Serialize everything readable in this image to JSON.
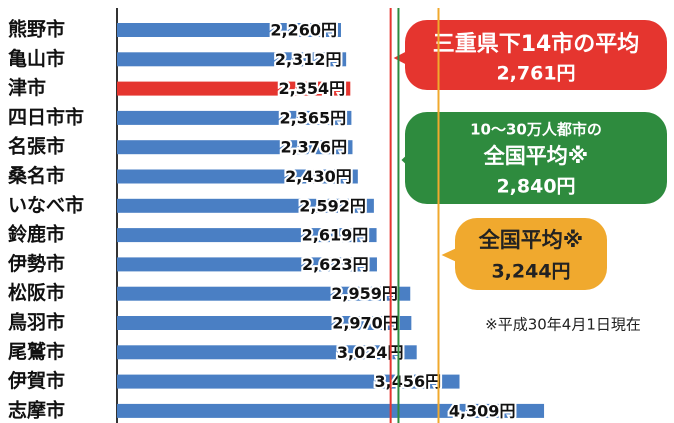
{
  "chart_data": {
    "type": "bar",
    "orientation": "horizontal",
    "categories": [
      "熊野市",
      "亀山市",
      "津市",
      "四日市市",
      "名張市",
      "桑名市",
      "いなべ市",
      "鈴鹿市",
      "伊勢市",
      "松阪市",
      "鳥羽市",
      "尾鷲市",
      "伊賀市",
      "志摩市"
    ],
    "values": [
      2260,
      2312,
      2354,
      2365,
      2376,
      2430,
      2592,
      2619,
      2623,
      2959,
      2970,
      3024,
      3456,
      4309
    ],
    "value_labels": [
      "2,260円",
      "2,312円",
      "2,354円",
      "2,365円",
      "2,376円",
      "2,430円",
      "2,592円",
      "2,619円",
      "2,623円",
      "2,959円",
      "2,970円",
      "3,024円",
      "3,456円",
      "4,309円"
    ],
    "colors": [
      "#4a7fc4",
      "#4a7fc4",
      "#e5352f",
      "#4a7fc4",
      "#4a7fc4",
      "#4a7fc4",
      "#4a7fc4",
      "#4a7fc4",
      "#4a7fc4",
      "#4a7fc4",
      "#4a7fc4",
      "#4a7fc4",
      "#4a7fc4",
      "#4a7fc4"
    ],
    "xlim": [
      0,
      5600
    ],
    "reference_lines": [
      {
        "value": 2761,
        "label": [
          "三重県下14市の平均"
        ],
        "value_label": "2,761円",
        "color": "#e5352f"
      },
      {
        "value": 2840,
        "label": [
          "10～30万人都市の",
          "全国平均※"
        ],
        "value_label": "2,840円",
        "color": "#2e8b3e"
      },
      {
        "value": 3244,
        "label": [
          "全国平均※"
        ],
        "value_label": "3,244円",
        "color": "#f0a92e"
      }
    ],
    "note": "※平成30年4月1日現在"
  }
}
